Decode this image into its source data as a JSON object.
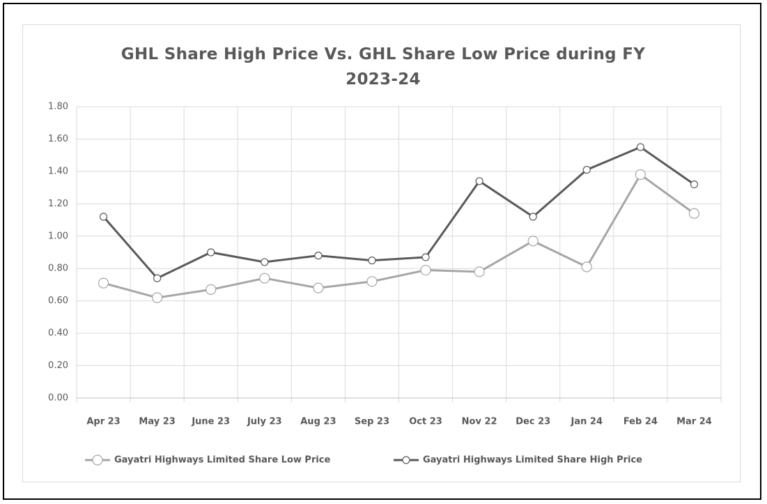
{
  "chart_data": {
    "type": "line",
    "title": "GHL Share High Price Vs. GHL Share Low Price during FY 2023-24",
    "categories": [
      "Apr 23",
      "May 23",
      "June 23",
      "July 23",
      "Aug 23",
      "Sep 23",
      "Oct 23",
      "Nov 22",
      "Dec 23",
      "Jan 24",
      "Feb 24",
      "Mar 24"
    ],
    "series": [
      {
        "name": "Gayatri Highways Limited Share Low Price",
        "color": "#a6a6a6",
        "values": [
          0.71,
          0.62,
          0.67,
          0.74,
          0.68,
          0.72,
          0.79,
          0.78,
          0.97,
          0.81,
          1.38,
          1.14
        ]
      },
      {
        "name": "Gayatri Highways Limited Share High Price",
        "color": "#595959",
        "values": [
          1.12,
          0.74,
          0.9,
          0.84,
          0.88,
          0.85,
          0.87,
          1.34,
          1.12,
          1.41,
          1.55,
          1.32
        ]
      }
    ],
    "ylim": [
      0,
      1.8
    ],
    "yticks": [
      {
        "value": 0,
        "label": "0.00"
      },
      {
        "value": 0.2,
        "label": "0.20"
      },
      {
        "value": 0.4,
        "label": "0.40"
      },
      {
        "value": 0.6,
        "label": "0.60"
      },
      {
        "value": 0.8,
        "label": "0.80"
      },
      {
        "value": 1,
        "label": "1.00"
      },
      {
        "value": 1.2,
        "label": "1.20"
      },
      {
        "value": 1.4,
        "label": "1.40"
      },
      {
        "value": 1.6,
        "label": "1.60"
      },
      {
        "value": 1.8,
        "label": "1.80"
      }
    ],
    "grid": true,
    "legend": "bottom"
  }
}
